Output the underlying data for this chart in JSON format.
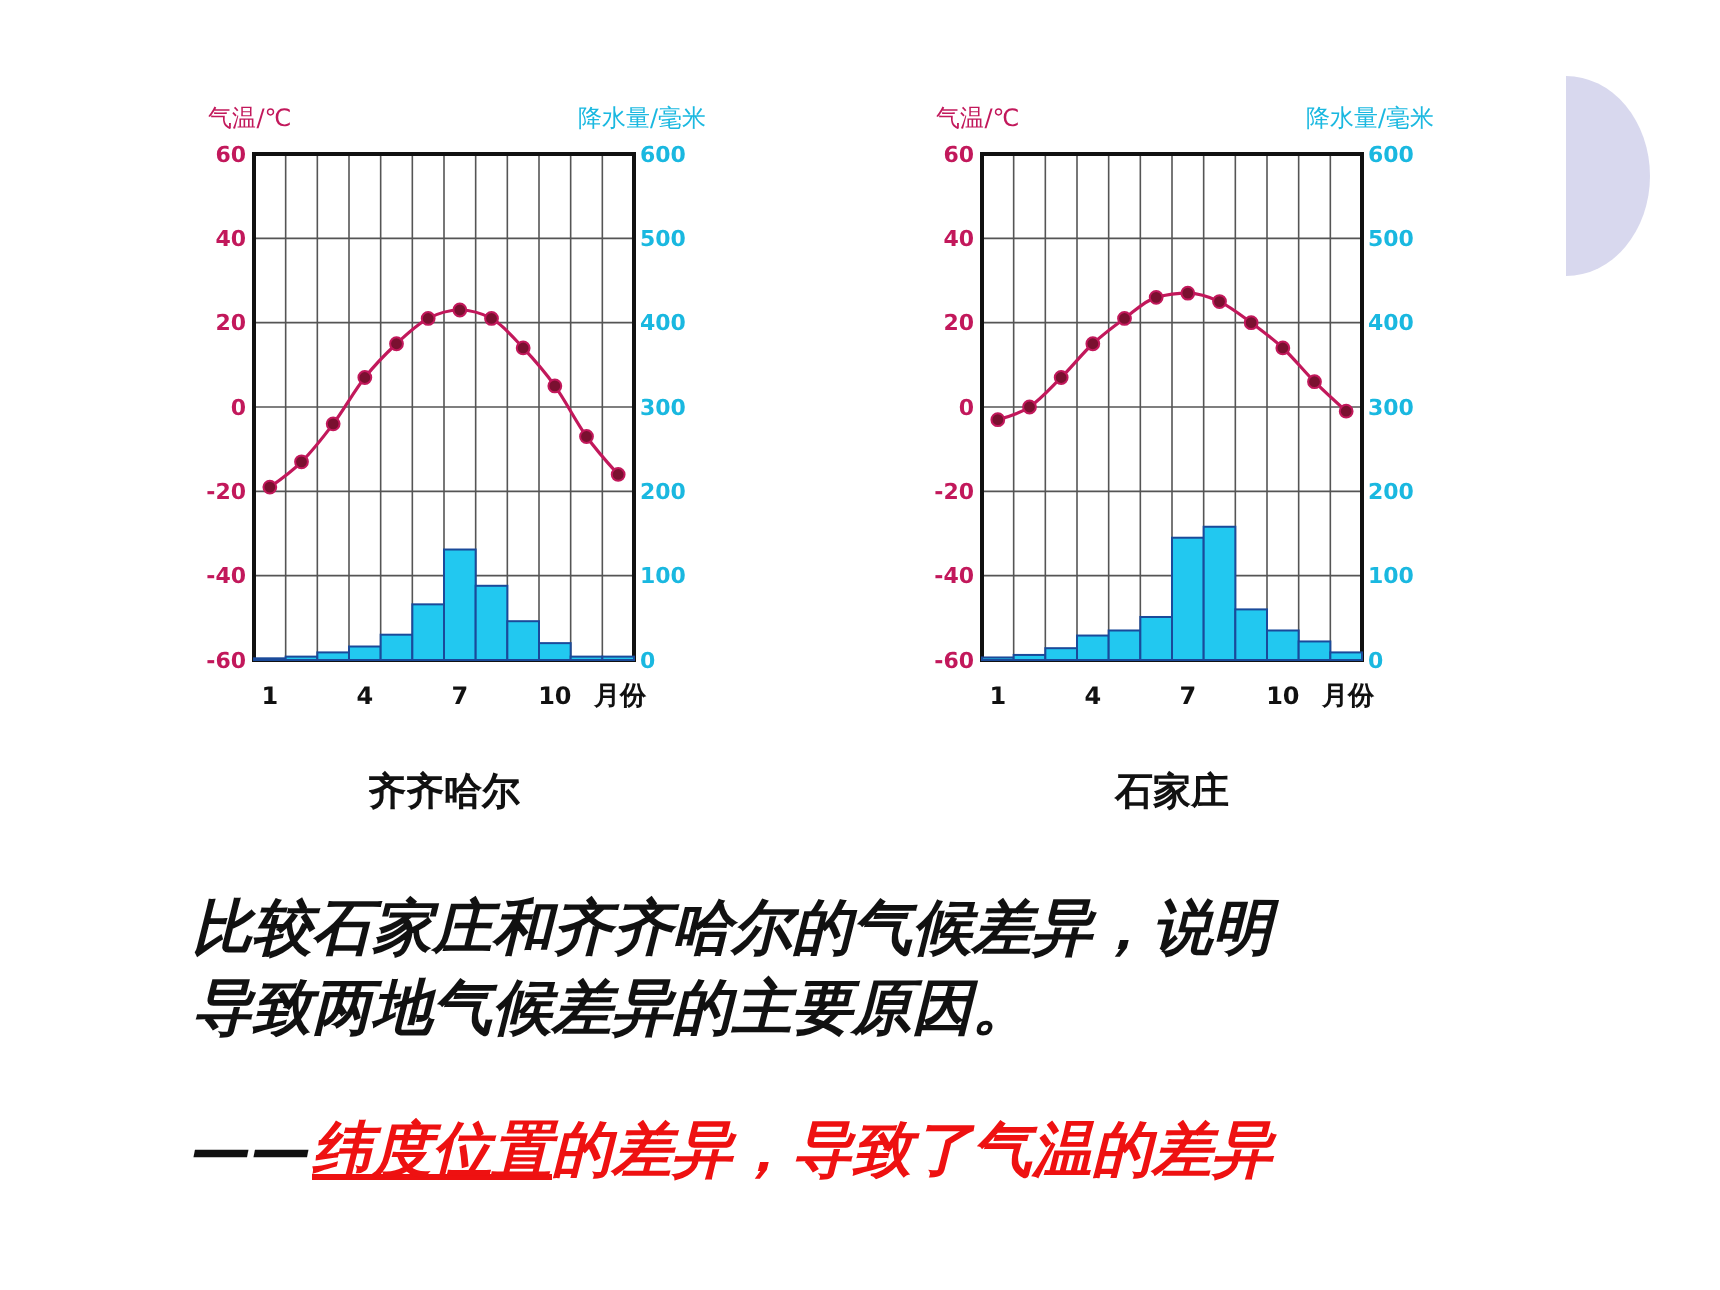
{
  "chart_data": [
    {
      "type": "bar",
      "title": "齐齐哈尔",
      "xlabel": "月份",
      "ylabel": "气温/℃",
      "y2label": "降水量/毫米",
      "categories": [
        "1",
        null,
        null,
        "4",
        null,
        null,
        "7",
        null,
        null,
        "10",
        null,
        null
      ],
      "series": [
        {
          "type": "line",
          "color": "#c2185b",
          "values": [
            -19,
            -13,
            -4,
            7,
            15,
            21,
            23,
            21,
            14,
            5,
            -7,
            -16
          ]
        },
        {
          "type": "bar",
          "axis": "y2",
          "color": "#22c8f0",
          "values": [
            2,
            4,
            9,
            16,
            30,
            66,
            131,
            88,
            46,
            20,
            4,
            4
          ]
        }
      ],
      "ylim": [
        -60,
        60
      ],
      "yticks": [
        -60,
        -40,
        -20,
        0,
        20,
        40,
        60
      ],
      "y2lim": [
        0,
        600
      ],
      "y2ticks": [
        0,
        100,
        200,
        300,
        400,
        500,
        600
      ],
      "grid": true,
      "marker": "circle"
    },
    {
      "type": "bar",
      "title": "石家庄",
      "xlabel": "月份",
      "ylabel": "气温/℃",
      "y2label": "降水量/毫米",
      "categories": [
        "1",
        null,
        null,
        "4",
        null,
        null,
        "7",
        null,
        null,
        "10",
        null,
        null
      ],
      "series": [
        {
          "type": "line",
          "color": "#c2185b",
          "values": [
            -3,
            0,
            7,
            15,
            21,
            26,
            27,
            25,
            20,
            14,
            6,
            -1
          ]
        },
        {
          "type": "bar",
          "axis": "y2",
          "color": "#22c8f0",
          "values": [
            3,
            6,
            14,
            29,
            35,
            51,
            145,
            158,
            60,
            35,
            22,
            9
          ]
        }
      ],
      "ylim": [
        -60,
        60
      ],
      "yticks": [
        -60,
        -40,
        -20,
        0,
        20,
        40,
        60
      ],
      "y2lim": [
        0,
        600
      ],
      "y2ticks": [
        0,
        100,
        200,
        300,
        400,
        500,
        600
      ],
      "grid": true,
      "marker": "circle"
    },
    {
      "type": "other",
      "annotations": [
        "比较石家庄和齐齐哈尔的气候差异，说明",
        "导致两地气候差异的主要原因。",
        "——",
        "纬度位置",
        "的差异，导致了气温的差异"
      ]
    }
  ]
}
